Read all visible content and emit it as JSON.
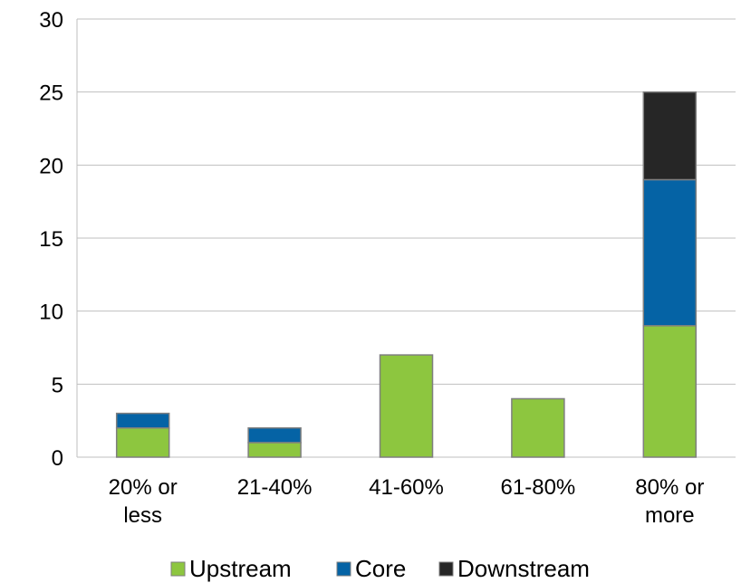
{
  "chart_data": {
    "type": "bar",
    "stacked": true,
    "categories": [
      [
        "20% or",
        "less"
      ],
      [
        "21-40%"
      ],
      [
        "41-60%"
      ],
      [
        "61-80%"
      ],
      [
        "80% or",
        "more"
      ]
    ],
    "series": [
      {
        "name": "Upstream",
        "color": "#8dc63f",
        "values": [
          2,
          1,
          7,
          4,
          9
        ]
      },
      {
        "name": "Core",
        "color": "#0563a5",
        "values": [
          1,
          1,
          0,
          0,
          10
        ]
      },
      {
        "name": "Downstream",
        "color": "#262626",
        "values": [
          0,
          0,
          0,
          0,
          6
        ]
      }
    ],
    "ylim": [
      0,
      30
    ],
    "yticks": [
      0,
      5,
      10,
      15,
      20,
      25,
      30
    ],
    "grid": true,
    "legend_position": "bottom"
  }
}
